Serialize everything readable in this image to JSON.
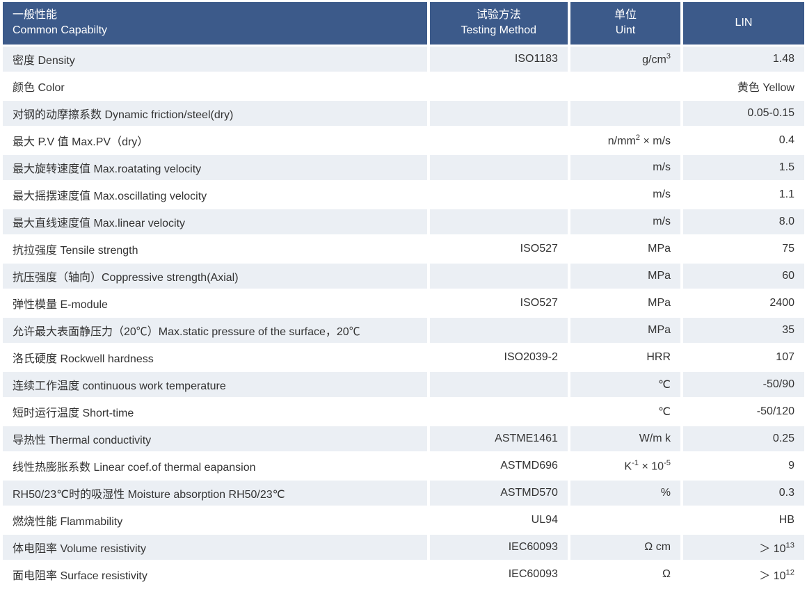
{
  "header": {
    "capability_cn": "一般性能",
    "capability_en": "Common Capabilty",
    "method_cn": "试验方法",
    "method_en": "Testing Method",
    "unit_cn": "单位",
    "unit_en": "Uint",
    "lin": "LIN"
  },
  "colors": {
    "header_bg": "#3c5a8a",
    "header_text": "#ffffff",
    "row_odd_bg": "#ebeff4",
    "row_even_bg": "#ffffff",
    "cell_text": "#333333"
  },
  "rows": [
    {
      "capability": "密度 Density",
      "method": "ISO1183",
      "unit_html": "g/cm<sup>3</sup>",
      "lin_html": "1.48"
    },
    {
      "capability": "颜色 Color",
      "method": "",
      "unit_html": "",
      "lin_html": "黄色 Yellow"
    },
    {
      "capability": "对钢的动摩擦系数 Dynamic friction/steel(dry)",
      "method": "",
      "unit_html": "",
      "lin_html": "0.05-0.15"
    },
    {
      "capability": "最大 P.V 值 Max.PV（dry）",
      "method": "",
      "unit_html": "n/mm<sup>2</sup> × m/s",
      "lin_html": "0.4"
    },
    {
      "capability": "最大旋转速度值 Max.roatating velocity",
      "method": "",
      "unit_html": "m/s",
      "lin_html": "1.5"
    },
    {
      "capability": "最大摇摆速度值 Max.oscillating velocity",
      "method": "",
      "unit_html": "m/s",
      "lin_html": "1.1"
    },
    {
      "capability": "最大直线速度值 Max.linear velocity",
      "method": "",
      "unit_html": "m/s",
      "lin_html": "8.0"
    },
    {
      "capability": "抗拉强度 Tensile strength",
      "method": "ISO527",
      "unit_html": "MPa",
      "lin_html": "75"
    },
    {
      "capability": "抗压强度（轴向）Coppressive strength(Axial)",
      "method": "",
      "unit_html": "MPa",
      "lin_html": "60"
    },
    {
      "capability": "弹性模量 E-module",
      "method": "ISO527",
      "unit_html": "MPa",
      "lin_html": "2400"
    },
    {
      "capability": "允许最大表面静压力（20℃）Max.static pressure of the surface，20℃",
      "method": "",
      "unit_html": "MPa",
      "lin_html": "35"
    },
    {
      "capability": "洛氏硬度 Rockwell hardness",
      "method": "ISO2039-2",
      "unit_html": "HRR",
      "lin_html": "107"
    },
    {
      "capability": "连续工作温度 continuous work temperature",
      "method": "",
      "unit_html": "℃",
      "lin_html": "-50/90"
    },
    {
      "capability": "短时运行温度 Short-time",
      "method": "",
      "unit_html": "℃",
      "lin_html": "-50/120"
    },
    {
      "capability": "导热性 Thermal conductivity",
      "method": "ASTME1461",
      "unit_html": "W/m k",
      "lin_html": "0.25"
    },
    {
      "capability": "线性热膨胀系数 Linear coef.of thermal eapansion",
      "method": "ASTMD696",
      "unit_html": "K<sup>-1</sup> × 10<sup>-5</sup>",
      "lin_html": "9"
    },
    {
      "capability": "RH50/23℃时的吸湿性 Moisture absorption RH50/23℃",
      "method": "ASTMD570",
      "unit_html": "%",
      "lin_html": "0.3"
    },
    {
      "capability": "燃烧性能 Flammability",
      "method": "UL94",
      "unit_html": "",
      "lin_html": "HB"
    },
    {
      "capability": "体电阻率 Volume resistivity",
      "method": "IEC60093",
      "unit_html": "Ω cm",
      "lin_html": "＞ 10<sup>13</sup>"
    },
    {
      "capability": "面电阻率 Surface resistivity",
      "method": "IEC60093",
      "unit_html": "Ω",
      "lin_html": "＞ 10<sup>12</sup>"
    }
  ]
}
